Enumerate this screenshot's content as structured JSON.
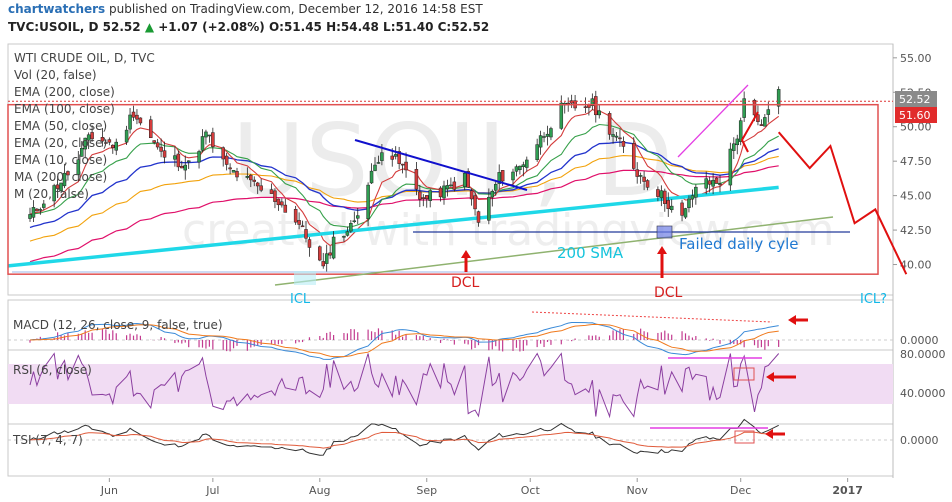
{
  "header": {
    "brand": "chartwatchers",
    "published": "published on TradingView.com, December 12, 2016 14:58 EST",
    "symbol": "TVC:USOIL, D",
    "last": "52.52",
    "change": "+1.07 (+2.08%)",
    "ohlc": "O:51.45 H:54.48 L:51.40 C:52.52"
  },
  "legend": [
    "WTI CRUDE OIL, D, TVC",
    "Vol (20, false)",
    "EMA (200, close)",
    "EMA (100, close)",
    "EMA (50, close)",
    "EMA (20, close)",
    "EMA (10, close)",
    "MA (200, close)",
    "M (20, false)"
  ],
  "panels": {
    "macd": "MACD (12, 26, close, 9, false, true)",
    "rsi": "RSI (6, close)",
    "tsi": "TSI (7, 4, 7)"
  },
  "watermark": {
    "symbol": "USOIL, D",
    "made": "created with tradingview.com"
  },
  "annotations": {
    "icl_left": "ICL",
    "dcl_1": "DCL",
    "dcl_2": "DCL",
    "sma_label": "200 SMA",
    "failed": "Failed daily cyle",
    "icl_right": "ICL?"
  },
  "price_tags": {
    "last": "52.52",
    "line": "51.60",
    "rsi_top": "80.0000",
    "macd_zero": "0.0000",
    "rsi_40": "40.0000",
    "tsi_zero": "0.0000"
  },
  "colors": {
    "candle_up": "#2f9e52",
    "candle_down": "#d43c3c",
    "ema200": "#1fd8e8",
    "ema100": "#2233cc",
    "ema50": "#e0106a",
    "ema20": "#f2a20c",
    "ema10": "#36a04a",
    "trend": "#1010cc",
    "annotation": "#e01010",
    "rsi_fill": "#f1dcf3"
  },
  "chart_data": {
    "type": "candlestick",
    "title": "WTI CRUDE OIL, D, TVC",
    "x_ticks": [
      "Jun",
      "Jul",
      "Aug",
      "Sep",
      "Oct",
      "Nov",
      "Dec",
      "2017"
    ],
    "y_ticks": [
      40.0,
      42.5,
      45.0,
      47.5,
      50.0,
      52.5,
      55.0
    ],
    "ylim": [
      38.5,
      56.5
    ],
    "date_range": [
      "2016-05-09",
      "2016-12-12"
    ],
    "close_path": [
      [
        "2016-05-09",
        43.5
      ],
      [
        "2016-05-16",
        45.5
      ],
      [
        "2016-05-23",
        47.5
      ],
      [
        "2016-05-26",
        49.4
      ],
      [
        "2016-06-03",
        48.6
      ],
      [
        "2016-06-08",
        51.1
      ],
      [
        "2016-06-16",
        48.0
      ],
      [
        "2016-06-24",
        47.2
      ],
      [
        "2016-06-29",
        49.5
      ],
      [
        "2016-07-05",
        47.0
      ],
      [
        "2016-07-12",
        45.9
      ],
      [
        "2016-07-20",
        44.6
      ],
      [
        "2016-07-26",
        42.9
      ],
      [
        "2016-08-02",
        39.7
      ],
      [
        "2016-08-05",
        41.8
      ],
      [
        "2016-08-10",
        42.7
      ],
      [
        "2016-08-15",
        45.8
      ],
      [
        "2016-08-19",
        48.5
      ],
      [
        "2016-08-25",
        47.1
      ],
      [
        "2016-08-31",
        44.7
      ],
      [
        "2016-09-07",
        45.5
      ],
      [
        "2016-09-12",
        46.3
      ],
      [
        "2016-09-16",
        43.1
      ],
      [
        "2016-09-22",
        46.3
      ],
      [
        "2016-09-28",
        47.1
      ],
      [
        "2016-10-03",
        48.8
      ],
      [
        "2016-10-10",
        51.3
      ],
      [
        "2016-10-19",
        51.6
      ],
      [
        "2016-10-26",
        49.2
      ],
      [
        "2016-11-01",
        46.7
      ],
      [
        "2016-11-08",
        45.0
      ],
      [
        "2016-11-14",
        43.3
      ],
      [
        "2016-11-18",
        45.7
      ],
      [
        "2016-11-25",
        46.1
      ],
      [
        "2016-11-30",
        49.4
      ],
      [
        "2016-12-02",
        51.7
      ],
      [
        "2016-12-07",
        49.8
      ],
      [
        "2016-12-09",
        51.5
      ],
      [
        "2016-12-12",
        52.5
      ]
    ],
    "sma200_endpoints": [
      [
        "2016-05-09",
        39.9
      ],
      [
        "2016-12-12",
        45.6
      ]
    ],
    "resistance_level": 51.6,
    "support_level": 39.3,
    "projection": [
      [
        "2016-12-12",
        49.6
      ],
      [
        "2016-12-21",
        47.0
      ],
      [
        "2016-12-27",
        48.6
      ],
      [
        "2017-01-03",
        43.0
      ],
      [
        "2017-01-09",
        44.0
      ],
      [
        "2017-01-18",
        39.3
      ]
    ],
    "macd_range": [
      -2.0,
      2.0
    ],
    "rsi_ticks": [
      40,
      80
    ],
    "tsi_zero": 0
  }
}
